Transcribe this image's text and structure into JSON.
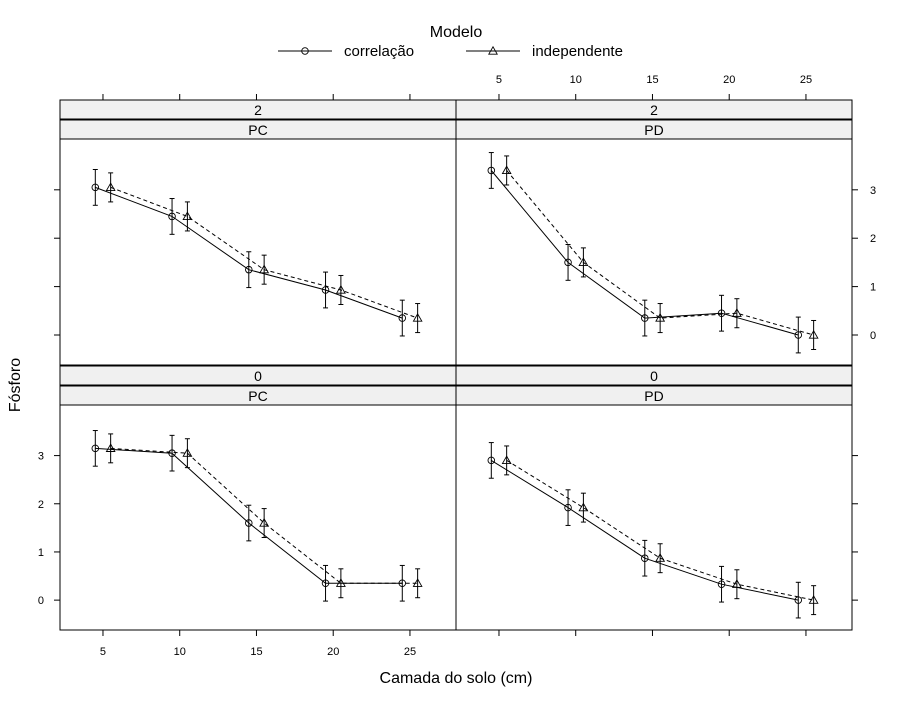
{
  "chart_data": {
    "type": "line",
    "legend": {
      "title": "Modelo",
      "position": "top",
      "entries": [
        {
          "label": "correlação",
          "marker": "circle",
          "line": "solid"
        },
        {
          "label": "independente",
          "marker": "triangle",
          "line": "dashed"
        }
      ]
    },
    "xlabel": "Camada do solo (cm)",
    "ylabel": "Fósforo",
    "xlim": [
      2.2,
      28.0
    ],
    "ylim": [
      -0.62,
      4.05
    ],
    "x_ticks": [
      5,
      10,
      15,
      20,
      25
    ],
    "y_ticks": [
      0,
      1,
      2,
      3
    ],
    "grid": false,
    "panels": [
      {
        "id": "top-left",
        "strip_top": "2",
        "strip_bottom": "PC",
        "series": [
          {
            "name": "correlação",
            "x": [
              4.5,
              9.5,
              14.5,
              19.5,
              24.5
            ],
            "y": [
              3.05,
              2.45,
              1.35,
              0.93,
              0.35
            ],
            "lower": [
              2.68,
              2.08,
              0.98,
              0.56,
              -0.02
            ],
            "upper": [
              3.42,
              2.82,
              1.72,
              1.3,
              0.72
            ]
          },
          {
            "name": "independente",
            "x": [
              5.5,
              10.5,
              15.5,
              20.5,
              25.5
            ],
            "y": [
              3.05,
              2.45,
              1.35,
              0.93,
              0.35
            ],
            "lower": [
              2.75,
              2.15,
              1.05,
              0.63,
              0.05
            ],
            "upper": [
              3.35,
              2.75,
              1.65,
              1.23,
              0.65
            ]
          }
        ]
      },
      {
        "id": "top-right",
        "strip_top": "2",
        "strip_bottom": "PD",
        "series": [
          {
            "name": "correlação",
            "x": [
              4.5,
              9.5,
              14.5,
              19.5,
              24.5
            ],
            "y": [
              3.4,
              1.5,
              0.35,
              0.45,
              0.0
            ],
            "lower": [
              3.03,
              1.13,
              -0.02,
              0.08,
              -0.37
            ],
            "upper": [
              3.77,
              1.87,
              0.72,
              0.82,
              0.37
            ]
          },
          {
            "name": "independente",
            "x": [
              5.5,
              10.5,
              15.5,
              20.5,
              25.5
            ],
            "y": [
              3.4,
              1.5,
              0.35,
              0.45,
              0.0
            ],
            "lower": [
              3.1,
              1.2,
              0.05,
              0.15,
              -0.3
            ],
            "upper": [
              3.7,
              1.8,
              0.65,
              0.75,
              0.3
            ]
          }
        ]
      },
      {
        "id": "bottom-left",
        "strip_top": "0",
        "strip_bottom": "PC",
        "series": [
          {
            "name": "correlação",
            "x": [
              4.5,
              9.5,
              14.5,
              19.5,
              24.5
            ],
            "y": [
              3.15,
              3.05,
              1.6,
              0.35,
              0.35
            ],
            "lower": [
              2.78,
              2.68,
              1.23,
              -0.02,
              -0.02
            ],
            "upper": [
              3.52,
              3.42,
              1.97,
              0.72,
              0.72
            ]
          },
          {
            "name": "independente",
            "x": [
              5.5,
              10.5,
              15.5,
              20.5,
              25.5
            ],
            "y": [
              3.15,
              3.05,
              1.6,
              0.35,
              0.35
            ],
            "lower": [
              2.85,
              2.75,
              1.3,
              0.05,
              0.05
            ],
            "upper": [
              3.45,
              3.35,
              1.9,
              0.65,
              0.65
            ]
          }
        ]
      },
      {
        "id": "bottom-right",
        "strip_top": "0",
        "strip_bottom": "PD",
        "series": [
          {
            "name": "correlação",
            "x": [
              4.5,
              9.5,
              14.5,
              19.5,
              24.5
            ],
            "y": [
              2.9,
              1.92,
              0.87,
              0.33,
              0.0
            ],
            "lower": [
              2.53,
              1.55,
              0.5,
              -0.04,
              -0.37
            ],
            "upper": [
              3.27,
              2.29,
              1.24,
              0.7,
              0.37
            ]
          },
          {
            "name": "independente",
            "x": [
              5.5,
              10.5,
              15.5,
              20.5,
              25.5
            ],
            "y": [
              2.9,
              1.92,
              0.87,
              0.33,
              0.0
            ],
            "lower": [
              2.6,
              1.62,
              0.57,
              0.03,
              -0.3
            ],
            "upper": [
              3.2,
              2.22,
              1.17,
              0.63,
              0.3
            ]
          }
        ]
      }
    ]
  }
}
